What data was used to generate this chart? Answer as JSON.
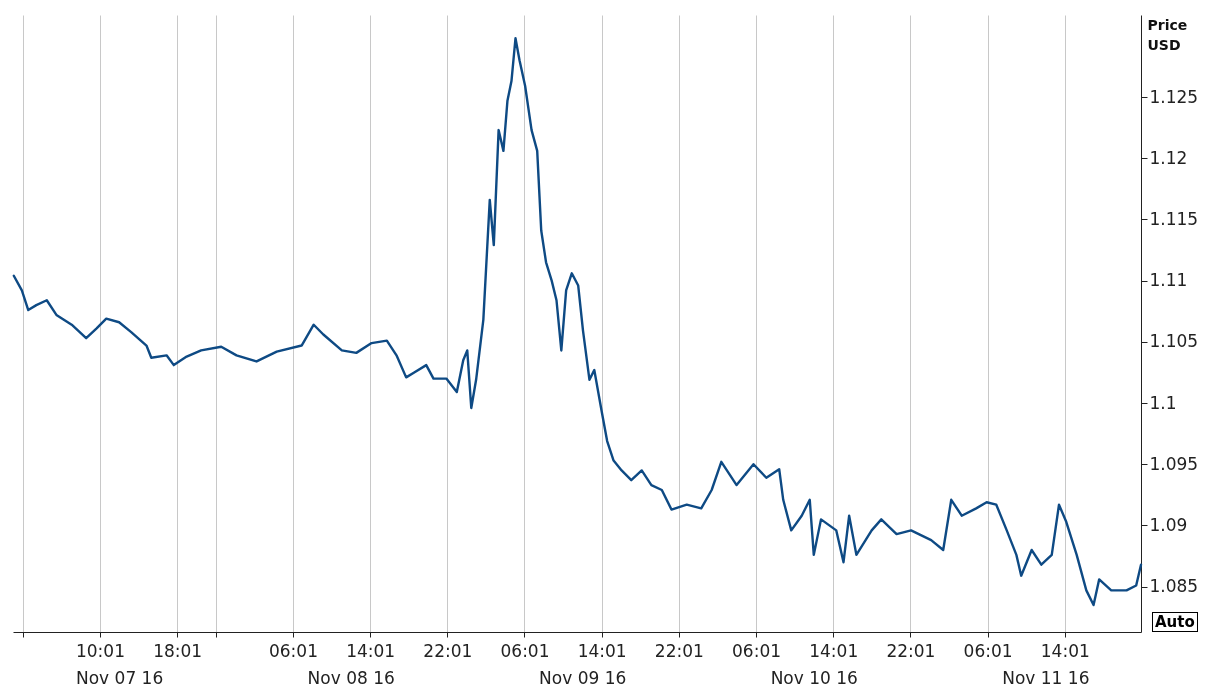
{
  "chart_data": {
    "type": "line",
    "ylabel": "Price\nUSD",
    "grid": "x",
    "xlim": [
      "--11-07T01:00",
      "--11-11T21:55"
    ],
    "x2lim": [
      "--11-07T01:00",
      "--11-11T21:55"
    ],
    "x2ticks": [
      {
        "value": "--11-07T12:00",
        "label": "Nov 07 16"
      },
      {
        "value": "--11-08T12:00",
        "label": "Nov 08 16"
      },
      {
        "value": "--11-09T12:00",
        "label": "Nov 09 16"
      },
      {
        "value": "--11-10T12:00",
        "label": "Nov 10 16"
      },
      {
        "value": "--11-11T12:00",
        "label": "Nov 11 16"
      }
    ],
    "xticks": [
      {
        "value": "--11-07T02:01",
        "label": null
      },
      {
        "value": "--11-07T10:01",
        "label": "10:01"
      },
      {
        "value": "--11-07T18:01",
        "label": "18:01"
      },
      {
        "value": "--11-07T22:01",
        "label": null
      },
      {
        "value": "--11-08T06:01",
        "label": "06:01"
      },
      {
        "value": "--11-08T14:01",
        "label": "14:01"
      },
      {
        "value": "--11-08T22:01",
        "label": "22:01"
      },
      {
        "value": "--11-09T06:01",
        "label": "06:01"
      },
      {
        "value": "--11-09T14:01",
        "label": "14:01"
      },
      {
        "value": "--11-09T22:01",
        "label": "22:01"
      },
      {
        "value": "--11-10T06:01",
        "label": "06:01"
      },
      {
        "value": "--11-10T14:01",
        "label": "14:01"
      },
      {
        "value": "--11-10T22:01",
        "label": "22:01"
      },
      {
        "value": "--11-11T06:01",
        "label": "06:01"
      },
      {
        "value": "--11-11T14:01",
        "label": "14:01"
      }
    ],
    "ylim": [
      1.0813,
      1.1317
    ],
    "yticks": [
      1.085,
      1.09,
      1.095,
      1.1,
      1.105,
      1.11,
      1.115,
      1.12,
      1.125
    ],
    "line_style": "solid",
    "marker": "none",
    "x": [
      "--11-07T01:05",
      "--11-07T01:55",
      "--11-07T02:35",
      "--11-07T03:25",
      "--11-07T04:30",
      "--11-07T05:30",
      "--11-07T07:05",
      "--11-07T08:35",
      "--11-07T09:40",
      "--11-07T10:40",
      "--11-07T12:00",
      "--11-07T13:15",
      "--11-07T14:50",
      "--11-07T15:20",
      "--11-07T16:55",
      "--11-07T17:40",
      "--11-07T19:00",
      "--11-07T20:30",
      "--11-07T22:35",
      "--11-08T00:10",
      "--11-08T02:15",
      "--11-08T04:20",
      "--11-08T06:55",
      "--11-08T08:10",
      "--11-08T09:10",
      "--11-08T11:05",
      "--11-08T12:35",
      "--11-08T14:10",
      "--11-08T15:45",
      "--11-08T16:45",
      "--11-08T17:45",
      "--11-08T18:35",
      "--11-08T19:50",
      "--11-08T20:35",
      "--11-08T21:55",
      "--11-08T23:00",
      "--11-08T23:40",
      "--11-09T00:05",
      "--11-09T00:30",
      "--11-09T01:00",
      "--11-09T01:45",
      "--11-09T02:25",
      "--11-09T02:50",
      "--11-09T03:20",
      "--11-09T03:50",
      "--11-09T04:15",
      "--11-09T04:40",
      "--11-09T05:05",
      "--11-09T05:30",
      "--11-09T06:05",
      "--11-09T06:45",
      "--11-09T07:20",
      "--11-09T07:45",
      "--11-09T08:15",
      "--11-09T08:50",
      "--11-09T09:20",
      "--11-09T09:50",
      "--11-09T10:20",
      "--11-09T10:55",
      "--11-09T11:35",
      "--11-09T12:05",
      "--11-09T12:45",
      "--11-09T13:15",
      "--11-09T14:00",
      "--11-09T14:35",
      "--11-09T15:15",
      "--11-09T16:05",
      "--11-09T17:05",
      "--11-09T18:10",
      "--11-09T19:10",
      "--11-09T20:15",
      "--11-09T21:15",
      "--11-09T22:50",
      "--11-10T00:20",
      "--11-10T01:25",
      "--11-10T02:25",
      "--11-10T04:00",
      "--11-10T05:45",
      "--11-10T07:05",
      "--11-10T08:25",
      "--11-10T08:50",
      "--11-10T09:40",
      "--11-10T10:45",
      "--11-10T11:35",
      "--11-10T12:00",
      "--11-10T12:45",
      "--11-10T14:20",
      "--11-10T15:05",
      "--11-10T15:40",
      "--11-10T16:25",
      "--11-10T18:00",
      "--11-10T19:00",
      "--11-10T20:35",
      "--11-10T22:05",
      "--11-11T00:10",
      "--11-11T01:25",
      "--11-11T02:15",
      "--11-11T03:20",
      "--11-11T04:50",
      "--11-11T05:55",
      "--11-11T06:55",
      "--11-11T08:00",
      "--11-11T09:00",
      "--11-11T09:30",
      "--11-11T10:35",
      "--11-11T11:35",
      "--11-11T12:40",
      "--11-11T13:25",
      "--11-11T14:10",
      "--11-11T15:15",
      "--11-11T16:15",
      "--11-11T17:00",
      "--11-11T17:35",
      "--11-11T18:50",
      "--11-11T20:25",
      "--11-11T21:25",
      "--11-11T21:55"
    ],
    "series": [
      {
        "color": "#0e4a84",
        "values": [
          1.1104,
          1.1092,
          1.1076,
          1.108,
          1.1084,
          1.1072,
          1.1064,
          1.1053,
          1.1061,
          1.1069,
          1.1066,
          1.1058,
          1.1047,
          1.1037,
          1.1039,
          1.1031,
          1.1038,
          1.1043,
          1.1046,
          1.1039,
          1.1034,
          1.1042,
          1.1047,
          1.1064,
          1.1056,
          1.1043,
          1.1041,
          1.1049,
          1.1051,
          1.1039,
          1.1021,
          1.1025,
          1.1031,
          1.102,
          1.102,
          1.1009,
          1.1035,
          1.1043,
          1.0996,
          1.1019,
          1.1068,
          1.1166,
          1.1129,
          1.1223,
          1.1206,
          1.1247,
          1.1263,
          1.1298,
          1.128,
          1.1259,
          1.1223,
          1.1206,
          1.1141,
          1.1115,
          1.11,
          1.1084,
          1.1043,
          1.1092,
          1.1106,
          1.1096,
          1.1059,
          1.1019,
          1.1027,
          1.0994,
          1.0969,
          1.0953,
          1.0945,
          1.0937,
          1.0945,
          1.0933,
          1.0929,
          1.0913,
          1.0917,
          1.0914,
          1.0929,
          1.0952,
          1.0933,
          1.095,
          1.0939,
          1.0946,
          1.0921,
          1.0896,
          1.0908,
          1.0921,
          1.0876,
          1.0905,
          1.0896,
          1.087,
          1.0908,
          1.0876,
          1.0896,
          1.0905,
          1.0893,
          1.0896,
          1.0888,
          1.088,
          1.0921,
          1.0908,
          1.0914,
          1.0919,
          1.0917,
          1.0896,
          1.0876,
          1.0859,
          1.088,
          1.0868,
          1.0876,
          1.0917,
          1.0903,
          1.0876,
          1.0847,
          1.0835,
          1.0856,
          1.0847,
          1.0847,
          1.0851,
          1.0868
        ]
      }
    ],
    "annotations": [
      "Auto"
    ]
  }
}
